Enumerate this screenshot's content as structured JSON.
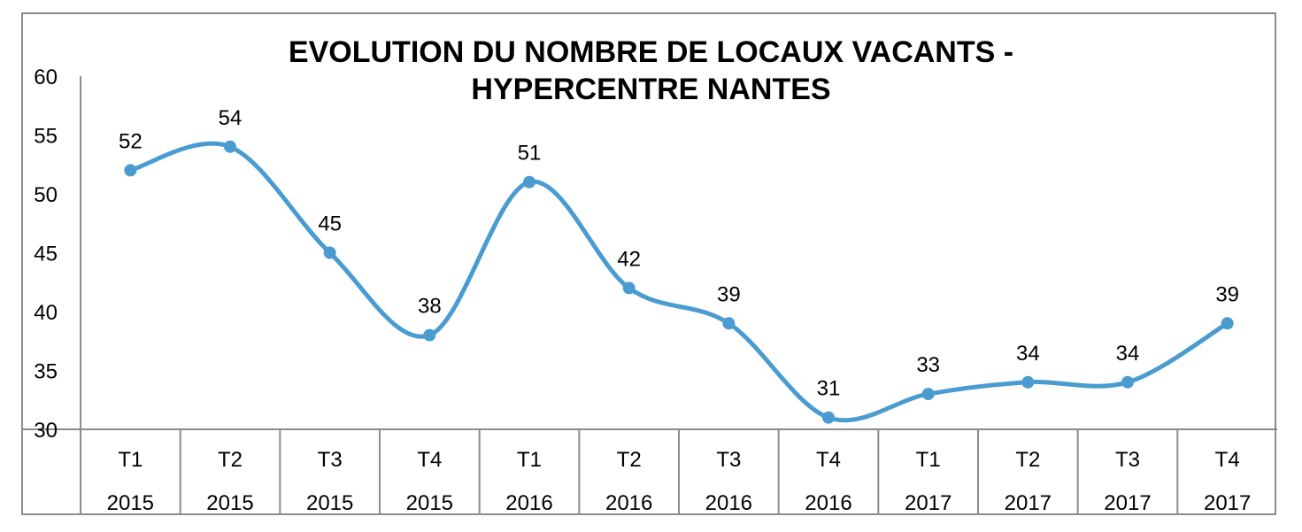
{
  "chart_data": {
    "type": "line",
    "title_line1": "EVOLUTION DU NOMBRE DE LOCAUX VACANTS -",
    "title_line2": "HYPERCENTRE NANTES",
    "categories": [
      [
        "T1",
        "2015"
      ],
      [
        "T2",
        "2015"
      ],
      [
        "T3",
        "2015"
      ],
      [
        "T4",
        "2015"
      ],
      [
        "T1",
        "2016"
      ],
      [
        "T2",
        "2016"
      ],
      [
        "T3",
        "2016"
      ],
      [
        "T4",
        "2016"
      ],
      [
        "T1",
        "2017"
      ],
      [
        "T2",
        "2017"
      ],
      [
        "T3",
        "2017"
      ],
      [
        "T4",
        "2017"
      ]
    ],
    "values": [
      52,
      54,
      45,
      38,
      51,
      42,
      39,
      31,
      33,
      34,
      34,
      39
    ],
    "ylim": [
      30,
      60
    ],
    "yticks": [
      30,
      35,
      40,
      45,
      50,
      55,
      60
    ],
    "line_style": "smoothed",
    "data_labels": true,
    "grid": false,
    "legend": "none",
    "series_color": "#4a9bd0"
  }
}
